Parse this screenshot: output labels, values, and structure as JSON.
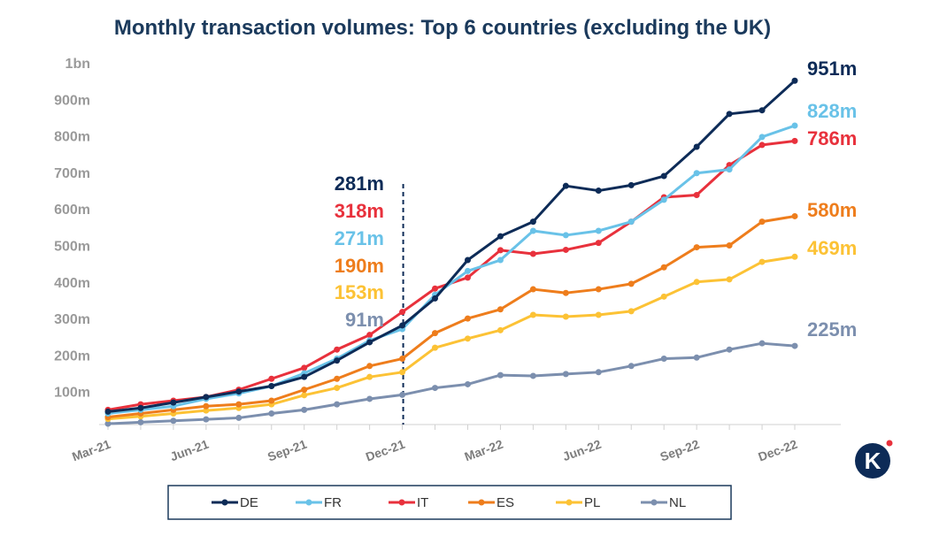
{
  "chart_data": {
    "type": "line",
    "title": "Monthly transaction volumes: Top 6 countries (excluding the UK)",
    "xlabel": "",
    "ylabel": "",
    "ylim": [
      0,
      1000
    ],
    "y_ticks": [
      "",
      "100m",
      "200m",
      "300m",
      "400m",
      "500m",
      "600m",
      "700m",
      "800m",
      "900m",
      "1bn"
    ],
    "x": [
      "Mar-21",
      "Apr-21",
      "May-21",
      "Jun-21",
      "Jul-21",
      "Aug-21",
      "Sep-21",
      "Oct-21",
      "Nov-21",
      "Dec-21",
      "Jan-22",
      "Feb-22",
      "Mar-22",
      "Apr-22",
      "May-22",
      "Jun-22",
      "Jul-22",
      "Aug-22",
      "Sep-22",
      "Oct-22",
      "Nov-22",
      "Dec-22"
    ],
    "x_tick_labels": [
      "Mar-21",
      "",
      "",
      "Jun-21",
      "",
      "",
      "Sep-21",
      "",
      "",
      "Dec-21",
      "",
      "",
      "Mar-22",
      "",
      "",
      "Jun-22",
      "",
      "",
      "Sep-22",
      "",
      "",
      "Dec-22"
    ],
    "grid": false,
    "legend_position": "bottom",
    "series": [
      {
        "name": "DE",
        "color": "#0d2b57",
        "end_label": "951m",
        "values": [
          45,
          55,
          70,
          85,
          100,
          115,
          140,
          185,
          235,
          281,
          355,
          460,
          525,
          565,
          663,
          650,
          665,
          690,
          770,
          860,
          870,
          951
        ]
      },
      {
        "name": "FR",
        "color": "#69c2e8",
        "end_label": "828m",
        "values": [
          40,
          50,
          60,
          80,
          95,
          115,
          150,
          190,
          240,
          271,
          365,
          430,
          460,
          540,
          528,
          540,
          565,
          625,
          698,
          708,
          797,
          828
        ]
      },
      {
        "name": "IT",
        "color": "#e8313c",
        "end_label": "786m",
        "values": [
          50,
          65,
          75,
          85,
          105,
          135,
          165,
          215,
          255,
          318,
          382,
          412,
          487,
          477,
          488,
          507,
          565,
          632,
          638,
          720,
          775,
          786
        ]
      },
      {
        "name": "ES",
        "color": "#ee7d1c",
        "end_label": "580m",
        "values": [
          30,
          40,
          50,
          60,
          65,
          75,
          105,
          135,
          170,
          190,
          260,
          300,
          325,
          380,
          370,
          380,
          395,
          440,
          495,
          500,
          565,
          580
        ]
      },
      {
        "name": "PL",
        "color": "#fcc235",
        "end_label": "469m",
        "values": [
          25,
          32,
          40,
          48,
          55,
          65,
          90,
          110,
          140,
          153,
          220,
          245,
          268,
          310,
          305,
          310,
          320,
          360,
          400,
          407,
          455,
          469
        ]
      },
      {
        "name": "NL",
        "color": "#7c8fae",
        "end_label": "225m",
        "values": [
          12,
          16,
          20,
          24,
          28,
          40,
          50,
          65,
          80,
          91,
          110,
          120,
          145,
          143,
          148,
          153,
          170,
          190,
          193,
          215,
          232,
          225
        ]
      }
    ],
    "annotation": {
      "x": "Dec-21",
      "style": "dashed",
      "labels": [
        {
          "series": "DE",
          "text": "281m"
        },
        {
          "series": "IT",
          "text": "318m"
        },
        {
          "series": "FR",
          "text": "271m"
        },
        {
          "series": "ES",
          "text": "190m"
        },
        {
          "series": "PL",
          "text": "153m"
        },
        {
          "series": "NL",
          "text": "91m"
        }
      ]
    }
  },
  "logo": {
    "name": "k-logo-icon",
    "letter": "K",
    "color": "#0d2b57",
    "dot_color": "#e8313c"
  }
}
